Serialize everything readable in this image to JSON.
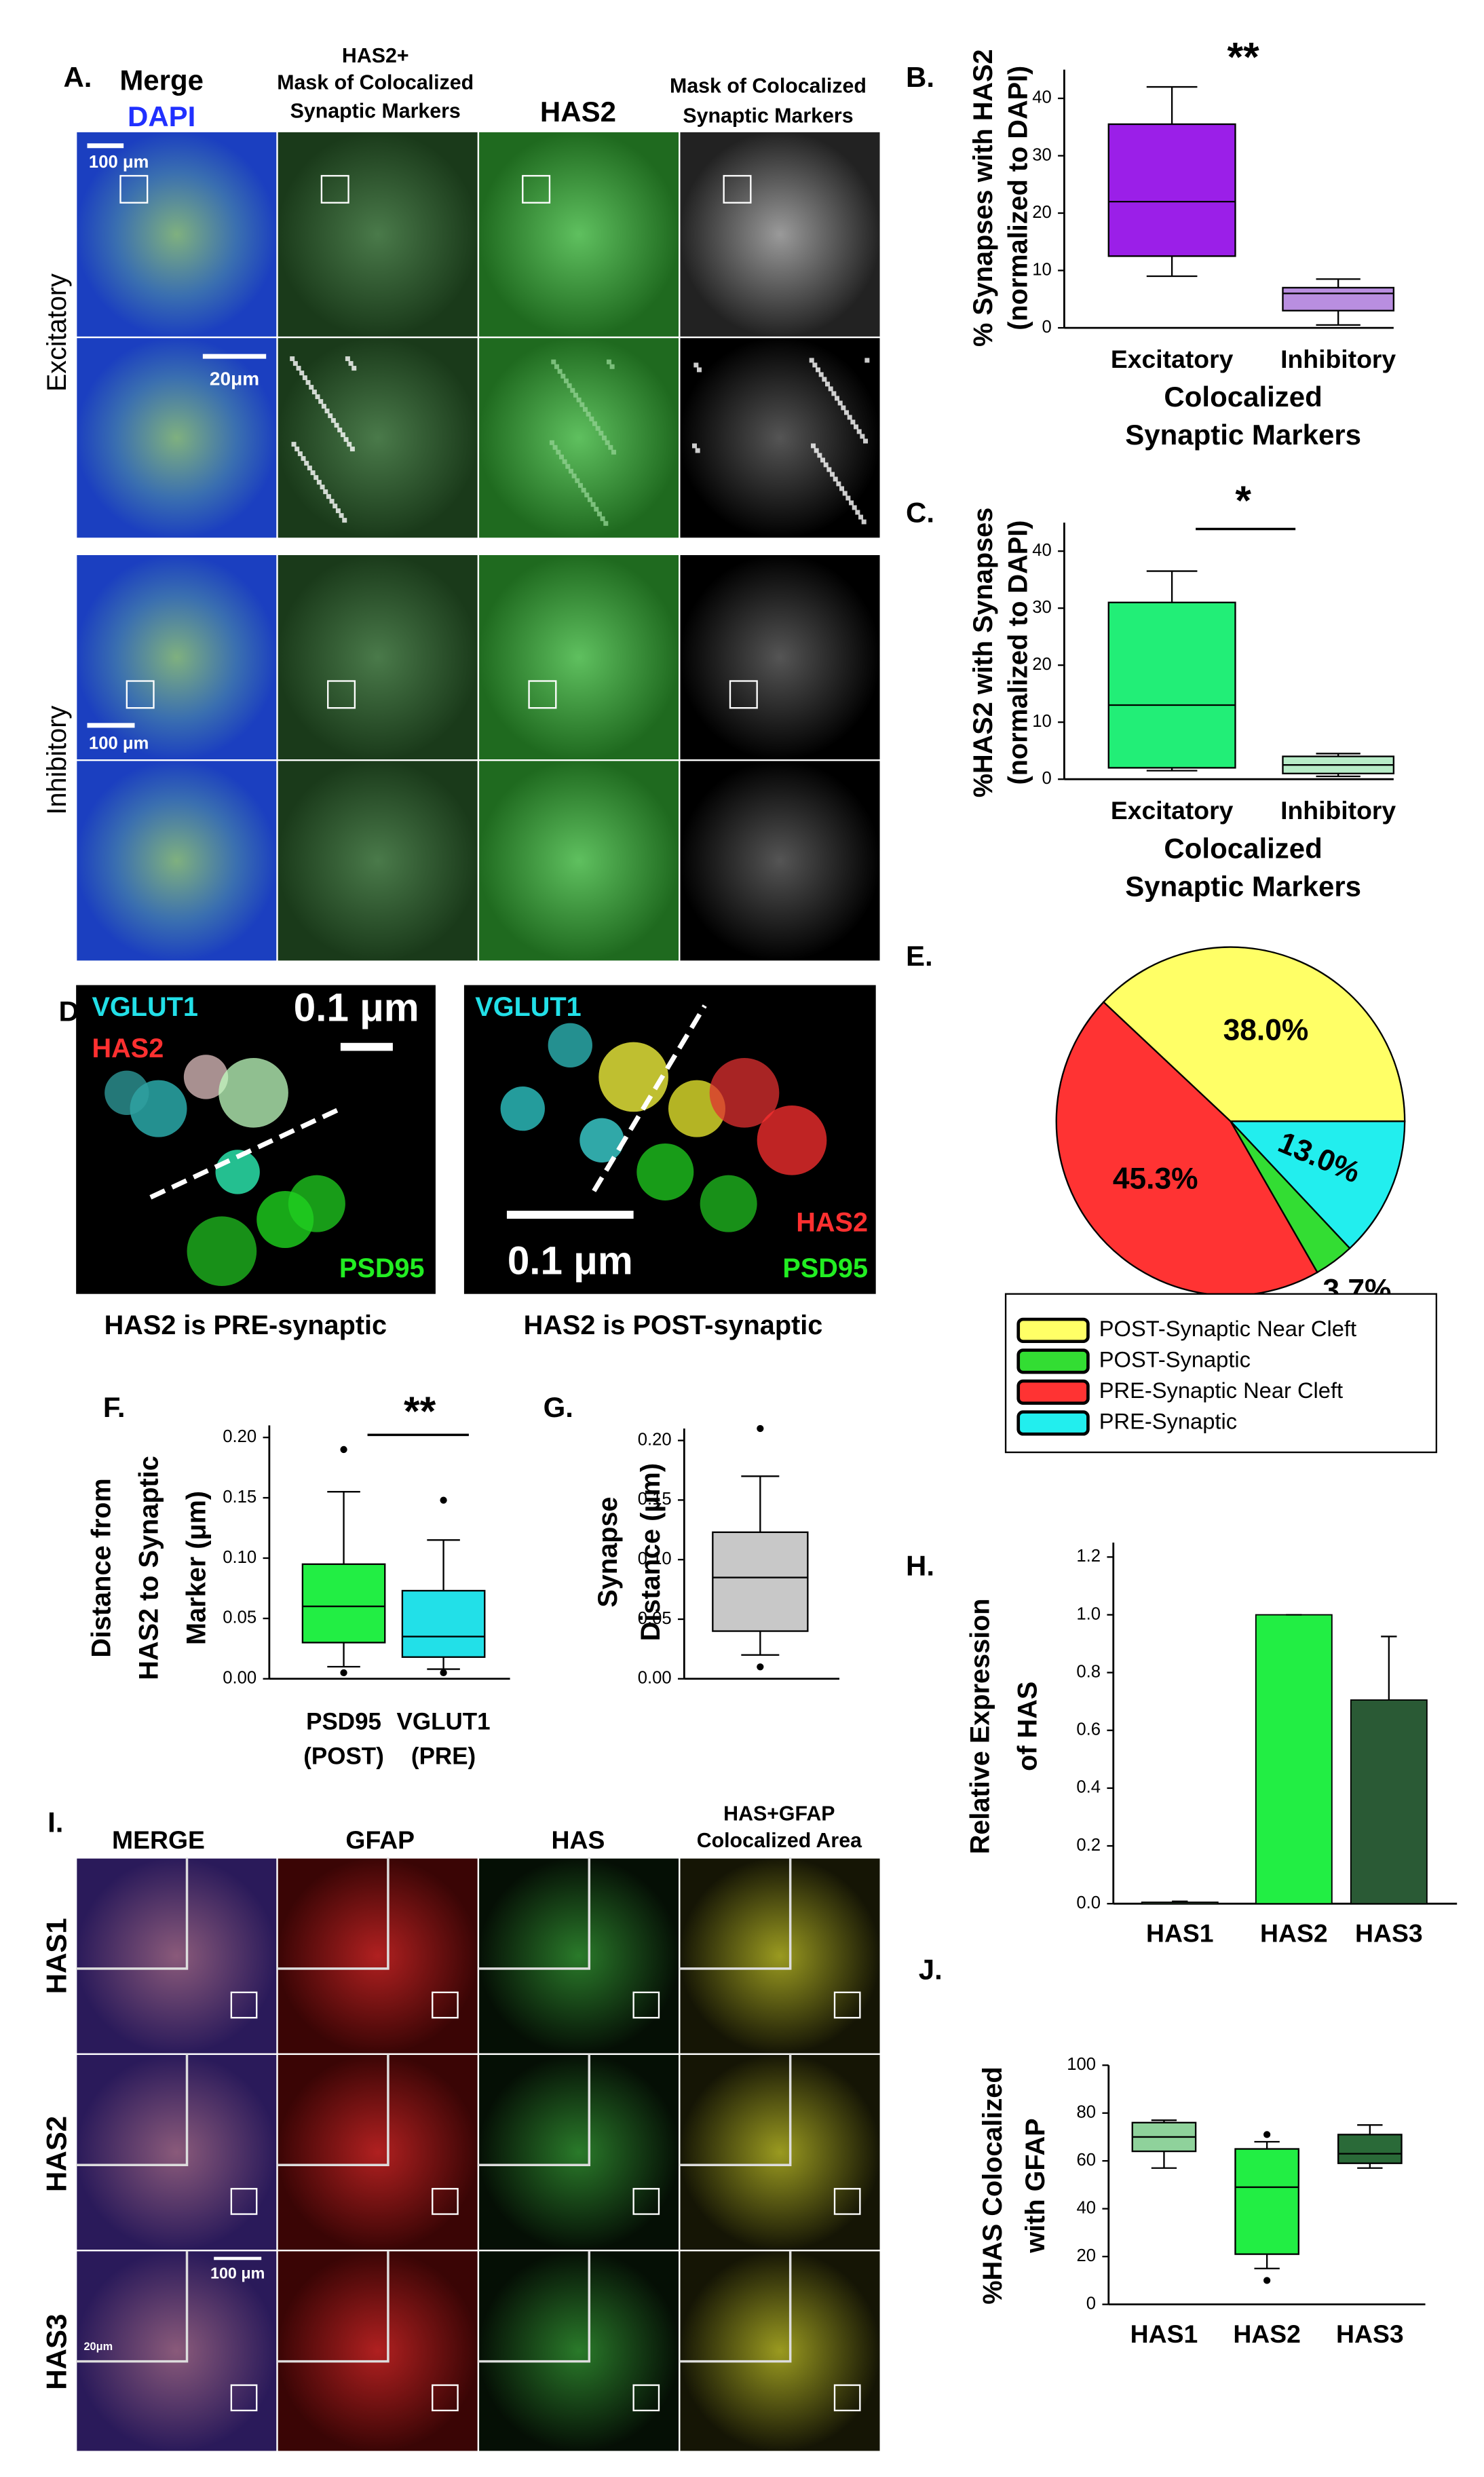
{
  "figure": {
    "A": {
      "label": "A.",
      "merge": "Merge",
      "dapi": "DAPI",
      "col2": [
        "HAS2+",
        "Mask of Colocalized",
        "Synaptic Markers"
      ],
      "col3": "HAS2",
      "col4": [
        "Mask of Colocalized",
        "Synaptic Markers"
      ],
      "rows": [
        "Excitatory",
        "Inhibitory"
      ],
      "scale_bars": [
        "100 μm",
        "20μm",
        "100 μm"
      ]
    },
    "D": {
      "label": "D.",
      "left": {
        "markers": [
          "VGLUT1",
          "HAS2",
          "PSD95"
        ],
        "scale": "0.1 μm",
        "caption": "HAS2 is PRE-synaptic"
      },
      "right": {
        "markers": [
          "VGLUT1",
          "HAS2",
          "PSD95"
        ],
        "scale": "0.1 μm",
        "caption": "HAS2 is POST-synaptic"
      }
    },
    "I": {
      "label": "I.",
      "columns": [
        [
          "MERGE"
        ],
        [
          "GFAP"
        ],
        [
          "HAS"
        ],
        [
          "HAS+GFAP",
          "Colocalized Area"
        ]
      ],
      "rows": [
        "HAS1",
        "HAS2",
        "HAS3"
      ],
      "scale_bars": [
        "100 μm",
        "20μm"
      ]
    }
  },
  "chart_data": [
    {
      "type": "box",
      "label": "B.",
      "annotation": "**",
      "ylabel": [
        "% Synapses with HAS2",
        "(normalized to DAPI)"
      ],
      "xlabel": [
        "Colocalized",
        "Synaptic Markers"
      ],
      "categories": [
        "Excitatory",
        "Inhibitory"
      ],
      "boxes": [
        {
          "low": 9,
          "q1": 12.5,
          "median": 22,
          "q3": 35.5,
          "high": 42,
          "outliers": [],
          "color": "#9b1fe8"
        },
        {
          "low": 0.5,
          "q1": 3,
          "median": 6,
          "q3": 7,
          "high": 8.5,
          "outliers": [],
          "color": "#b98ee0"
        }
      ],
      "ylim": [
        0,
        45
      ],
      "yticks": [
        0,
        10,
        20,
        30,
        40
      ]
    },
    {
      "type": "box",
      "label": "C.",
      "annotation": "*",
      "ylabel": [
        "%HAS2 with Synapses",
        "(normalized to DAPI)"
      ],
      "xlabel": [
        "Colocalized",
        "Synaptic Markers"
      ],
      "categories": [
        "Excitatory",
        "Inhibitory"
      ],
      "boxes": [
        {
          "low": 1.5,
          "q1": 2,
          "median": 13,
          "q3": 31,
          "high": 36.5,
          "outliers": [],
          "color": "#22ee77"
        },
        {
          "low": 0.5,
          "q1": 1,
          "median": 2.5,
          "q3": 4,
          "high": 4.5,
          "outliers": [],
          "color": "#b8ecc8"
        }
      ],
      "ylim": [
        0,
        45
      ],
      "yticks": [
        0,
        10,
        20,
        30,
        40
      ]
    },
    {
      "type": "pie",
      "label": "E.",
      "values": [
        38.0,
        13.0,
        3.7,
        45.3
      ],
      "value_labels": [
        "38.0%",
        "13.0%",
        "3.7%",
        "45.3%"
      ],
      "colors": [
        "#ffff66",
        "#22eeee",
        "#33dd33",
        "#ff3333"
      ],
      "legend": [
        {
          "name": "POST-Synaptic Near Cleft",
          "color": "#ffff66"
        },
        {
          "name": "POST-Synaptic",
          "color": "#33dd33"
        },
        {
          "name": "PRE-Synaptic Near Cleft",
          "color": "#ff3333"
        },
        {
          "name": "PRE-Synaptic",
          "color": "#22eeee"
        }
      ]
    },
    {
      "type": "box",
      "label": "F.",
      "annotation": "**",
      "ylabel": [
        "Distance from",
        "HAS2 to Synaptic",
        "Marker (μm)"
      ],
      "categories": [
        [
          "PSD95",
          "(POST)"
        ],
        [
          "VGLUT1",
          "(PRE)"
        ]
      ],
      "boxes": [
        {
          "low": 0.01,
          "q1": 0.03,
          "median": 0.06,
          "q3": 0.095,
          "high": 0.155,
          "outliers": [
            0.19,
            0.005
          ],
          "color": "#22ee44"
        },
        {
          "low": 0.008,
          "q1": 0.018,
          "median": 0.035,
          "q3": 0.073,
          "high": 0.115,
          "outliers": [
            0.148,
            0.005
          ],
          "color": "#22e0e8"
        }
      ],
      "ylim": [
        0,
        0.21
      ],
      "yticks": [
        {
          "value": 0,
          "label": "0.00"
        },
        {
          "value": 0.05,
          "label": "0.05"
        },
        {
          "value": 0.1,
          "label": "0.10"
        },
        {
          "value": 0.15,
          "label": "0.15"
        },
        {
          "value": 0.2,
          "label": "0.20"
        }
      ]
    },
    {
      "type": "box",
      "label": "G.",
      "ylabel": [
        "Synapse",
        "Distance (μm)"
      ],
      "boxes": [
        {
          "low": 0.02,
          "q1": 0.04,
          "median": 0.085,
          "q3": 0.123,
          "high": 0.17,
          "outliers": [
            0.21,
            0.01
          ],
          "color": "#c8c8c8"
        }
      ],
      "ylim": [
        0,
        0.21
      ],
      "yticks": [
        {
          "value": 0,
          "label": "0.00"
        },
        {
          "value": 0.05,
          "label": "0.05"
        },
        {
          "value": 0.1,
          "label": "0.10"
        },
        {
          "value": 0.15,
          "label": "0.15"
        },
        {
          "value": 0.2,
          "label": "0.20"
        }
      ]
    },
    {
      "type": "bar",
      "label": "H.",
      "ylabel": [
        "Relative Expression",
        "of HAS"
      ],
      "categories": [
        "HAS1",
        "HAS2",
        "HAS3"
      ],
      "values": [
        0.005,
        1.0,
        0.705
      ],
      "errors": [
        0.003,
        0,
        0.22
      ],
      "colors": [
        "#9be89b",
        "#22ee44",
        "#2a5a35"
      ],
      "ylim": [
        0,
        1.25
      ],
      "yticks": [
        {
          "value": 0,
          "label": "0.0"
        },
        {
          "value": 0.2,
          "label": "0.2"
        },
        {
          "value": 0.4,
          "label": "0.4"
        },
        {
          "value": 0.6,
          "label": "0.6"
        },
        {
          "value": 0.8,
          "label": "0.8"
        },
        {
          "value": 1,
          "label": "1.0"
        },
        {
          "value": 1.2,
          "label": "1.2"
        }
      ]
    },
    {
      "type": "box",
      "label": "J.",
      "ylabel": [
        "%HAS Colocalized",
        "with GFAP"
      ],
      "categories": [
        "HAS1",
        "HAS2",
        "HAS3"
      ],
      "boxes": [
        {
          "low": 57,
          "q1": 64,
          "median": 70,
          "q3": 76,
          "high": 77,
          "outliers": [],
          "color": "#8fd29b"
        },
        {
          "low": 15,
          "q1": 21,
          "median": 49,
          "q3": 65,
          "high": 68,
          "outliers": [
            71,
            10
          ],
          "color": "#22ee44"
        },
        {
          "low": 57,
          "q1": 59,
          "median": 63,
          "q3": 71,
          "high": 75,
          "outliers": [],
          "color": "#2a6a38"
        }
      ],
      "ylim": [
        0,
        100
      ],
      "yticks": [
        0,
        20,
        40,
        60,
        80,
        100
      ]
    }
  ]
}
